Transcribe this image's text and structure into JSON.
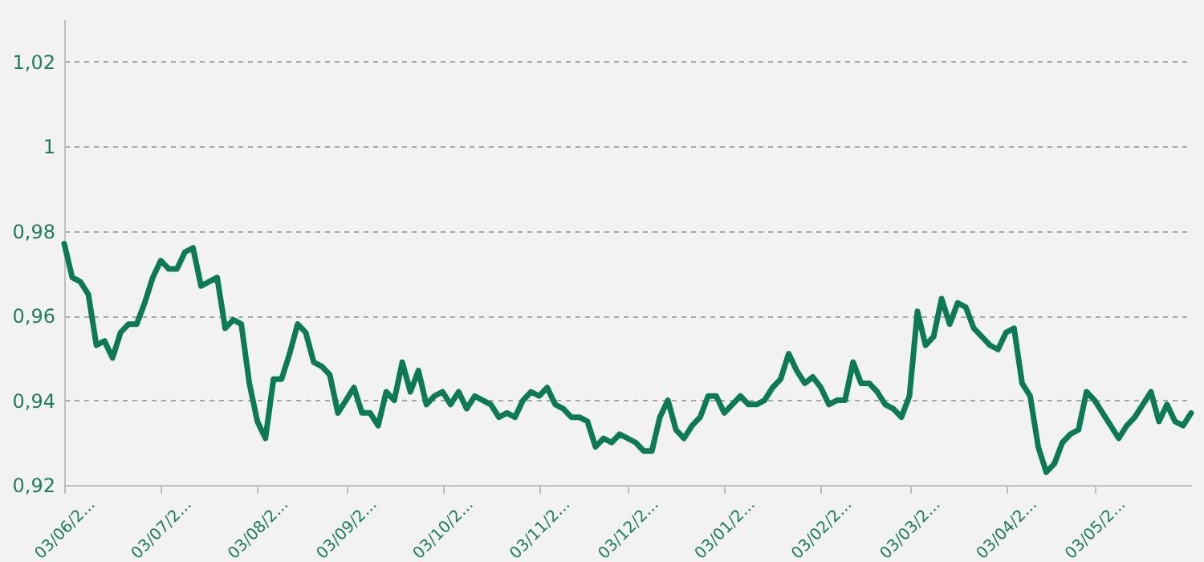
{
  "chart_data": {
    "type": "line",
    "categories": [
      "03/06/2...",
      null,
      null,
      null,
      null,
      null,
      null,
      null,
      null,
      null,
      null,
      null,
      "03/07/2...",
      null,
      null,
      null,
      null,
      null,
      null,
      null,
      null,
      null,
      null,
      null,
      "03/08/2...",
      null,
      null,
      null,
      null,
      null,
      null,
      null,
      null,
      null,
      null,
      "03/09/2...",
      null,
      null,
      null,
      null,
      null,
      null,
      null,
      null,
      null,
      null,
      null,
      "03/10/2...",
      null,
      null,
      null,
      null,
      null,
      null,
      null,
      null,
      null,
      null,
      null,
      "03/11/2...",
      null,
      null,
      null,
      null,
      null,
      null,
      null,
      null,
      null,
      null,
      "03/12/2...",
      null,
      null,
      null,
      null,
      null,
      null,
      null,
      null,
      null,
      null,
      null,
      "03/01/2...",
      null,
      null,
      null,
      null,
      null,
      null,
      null,
      null,
      null,
      null,
      null,
      "03/02/2...",
      null,
      null,
      null,
      null,
      null,
      null,
      null,
      null,
      null,
      null,
      "03/03/2...",
      null,
      null,
      null,
      null,
      null,
      null,
      null,
      null,
      null,
      null,
      null,
      "03/04/2...",
      null,
      null,
      null,
      null,
      null,
      null,
      null,
      null,
      null,
      null,
      "03/05/2...",
      null,
      null,
      null,
      null,
      null,
      null,
      null,
      null,
      null,
      null,
      null,
      null
    ],
    "series": [
      {
        "color": "#0c7a57",
        "values": [
          0.977,
          0.969,
          0.968,
          0.965,
          0.953,
          0.954,
          0.95,
          0.956,
          0.958,
          0.958,
          0.963,
          0.969,
          0.973,
          0.971,
          0.971,
          0.975,
          0.976,
          0.967,
          0.968,
          0.969,
          0.957,
          0.959,
          0.958,
          0.944,
          0.935,
          0.931,
          0.945,
          0.945,
          0.951,
          0.958,
          0.956,
          0.949,
          0.948,
          0.946,
          0.937,
          0.94,
          0.943,
          0.937,
          0.937,
          0.934,
          0.942,
          0.94,
          0.949,
          0.942,
          0.947,
          0.939,
          0.941,
          0.942,
          0.939,
          0.942,
          0.938,
          0.941,
          0.94,
          0.939,
          0.936,
          0.937,
          0.936,
          0.94,
          0.942,
          0.941,
          0.943,
          0.939,
          0.938,
          0.936,
          0.936,
          0.935,
          0.929,
          0.931,
          0.93,
          0.932,
          0.931,
          0.93,
          0.928,
          0.928,
          0.936,
          0.94,
          0.933,
          0.931,
          0.934,
          0.936,
          0.941,
          0.941,
          0.937,
          0.939,
          0.941,
          0.939,
          0.939,
          0.94,
          0.943,
          0.945,
          0.951,
          0.947,
          0.944,
          0.9455,
          0.943,
          0.939,
          0.94,
          0.94,
          0.949,
          0.944,
          0.944,
          0.942,
          0.939,
          0.938,
          0.936,
          0.941,
          0.961,
          0.953,
          0.955,
          0.964,
          0.958,
          0.963,
          0.962,
          0.957,
          0.955,
          0.953,
          0.952,
          0.956,
          0.957,
          0.944,
          0.941,
          0.929,
          0.923,
          0.925,
          0.93,
          0.932,
          0.933,
          0.942,
          0.94,
          0.937,
          0.934,
          0.931,
          0.934,
          0.936,
          0.939,
          0.942,
          0.935,
          0.939,
          0.935,
          0.934,
          0.937
        ]
      }
    ],
    "ylim": [
      0.92,
      1.03
    ],
    "yticks": [
      {
        "value": 0.92,
        "label": "0,92"
      },
      {
        "value": 0.94,
        "label": "0,94"
      },
      {
        "value": 0.96,
        "label": "0,96"
      },
      {
        "value": 0.98,
        "label": "0,98"
      },
      {
        "value": 1,
        "label": "1"
      },
      {
        "value": 1.02,
        "label": "1,02"
      }
    ],
    "grid": "y",
    "marker": "none",
    "line_style": "solid"
  }
}
